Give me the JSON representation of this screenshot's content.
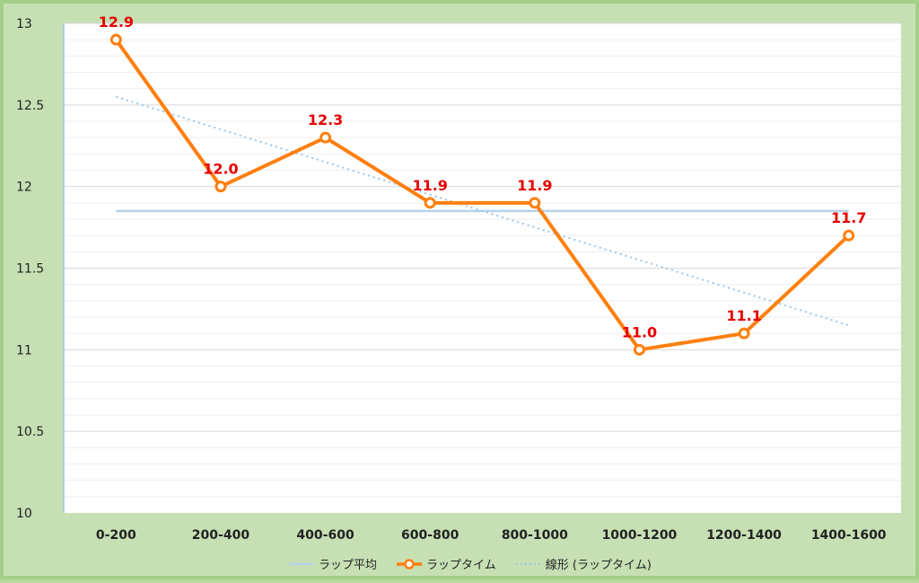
{
  "chart_data": {
    "type": "line",
    "categories": [
      "0-200",
      "200-400",
      "400-600",
      "600-800",
      "800-1000",
      "1000-1200",
      "1200-1400",
      "1400-1600"
    ],
    "series": [
      {
        "name": "ラップ平均",
        "values": [
          11.85,
          11.85,
          11.85,
          11.85,
          11.85,
          11.85,
          11.85,
          11.85
        ],
        "color": "#b7d2e8",
        "style": "solid"
      },
      {
        "name": "ラップタイム",
        "values": [
          12.9,
          12.0,
          12.3,
          11.9,
          11.9,
          11.0,
          11.1,
          11.7
        ],
        "color": "#ff7f0e",
        "style": "solid-markers",
        "labels": [
          "12.9",
          "12.0",
          "12.3",
          "11.9",
          "11.9",
          "11.0",
          "11.1",
          "11.7"
        ]
      },
      {
        "name": "線形 (ラップタイム)",
        "values": [
          12.55,
          12.35,
          12.15,
          11.95,
          11.75,
          11.55,
          11.35,
          11.15
        ],
        "color": "#9dc3e6",
        "style": "dotted"
      }
    ],
    "y_ticks": [
      "10",
      "10.5",
      "11",
      "11.5",
      "12",
      "12.5",
      "13"
    ],
    "ylim": [
      10,
      13
    ],
    "minor_grid_step": 0.1,
    "grid": true,
    "legend": "bottom"
  }
}
